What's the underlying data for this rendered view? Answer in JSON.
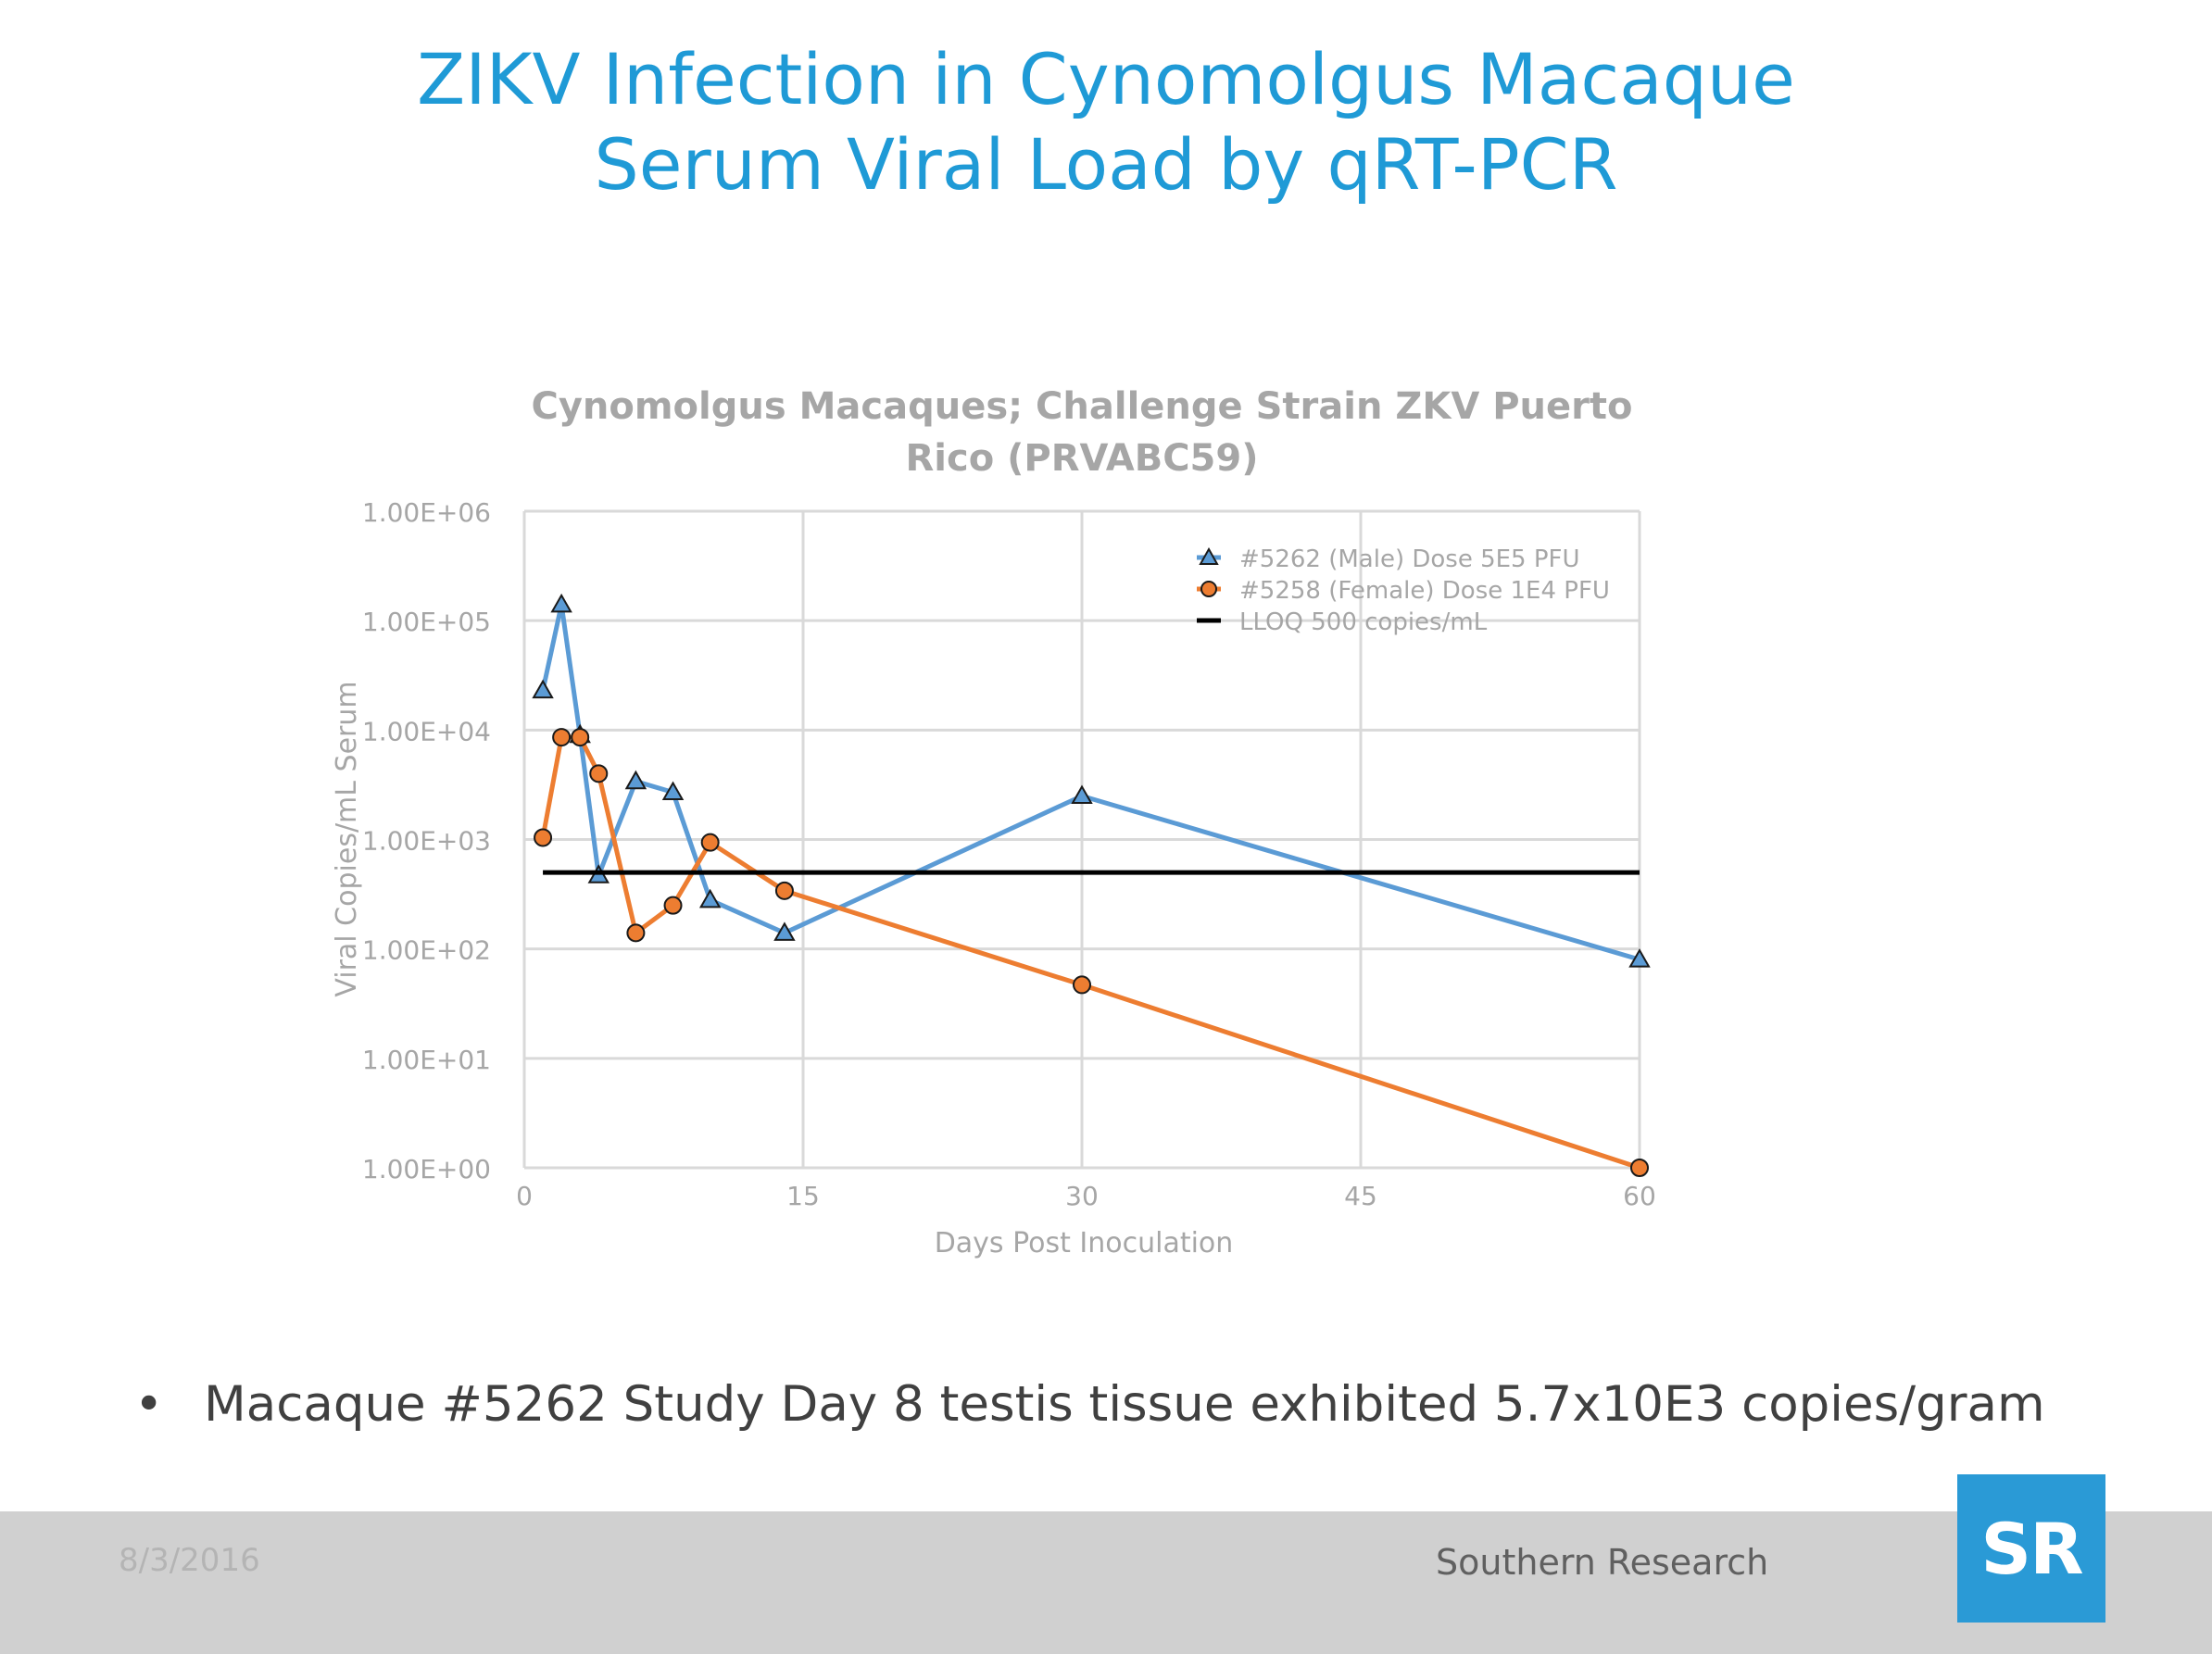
{
  "slide": {
    "title_line1": "ZIKV Infection in Cynomolgus Macaque",
    "title_line2": "Serum Viral Load by qRT-PCR",
    "bullet_symbol": "•",
    "bullet_text": "Macaque #5262 Study Day 8 testis tissue exhibited 5.7x10E3 copies/gram"
  },
  "footer": {
    "date": "8/3/2016",
    "company": "Southern Research",
    "logo_text": "SR"
  },
  "colors": {
    "title": "#1f9ad6",
    "male_series": "#5b9bd5",
    "female_series": "#ed7d31",
    "lloq": "#000000",
    "logo_bg": "#2a9ad6"
  },
  "chart_data": {
    "type": "line",
    "title_line1": "Cynomolgus Macaques; Challenge Strain ZKV Puerto",
    "title_line2": "Rico (PRVABC59)",
    "xlabel": "Days Post Inoculation",
    "ylabel": "Viral Copies/mL Serum",
    "xlim": [
      0,
      60
    ],
    "x_ticks": [
      0,
      15,
      30,
      45,
      60
    ],
    "y_scale": "log",
    "ylim": [
      1,
      1000000
    ],
    "y_ticks": [
      1,
      10,
      100,
      1000,
      10000,
      100000,
      1000000
    ],
    "y_tick_labels": [
      "1.00E+00",
      "1.00E+01",
      "1.00E+02",
      "1.00E+03",
      "1.00E+04",
      "1.00E+05",
      "1.00E+06"
    ],
    "grid": true,
    "legend_position": "top-right",
    "series": [
      {
        "name": "#5262 (Male) Dose 5E5 PFU",
        "marker": "triangle",
        "color": "#5b9bd5",
        "x": [
          1,
          2,
          3,
          4,
          6,
          8,
          10,
          14,
          30,
          60
        ],
        "y": [
          23000,
          140000,
          9000,
          470,
          3400,
          2700,
          280,
          140,
          2500,
          80
        ]
      },
      {
        "name": "#5258 (Female) Dose 1E4 PFU",
        "marker": "circle",
        "color": "#ed7d31",
        "x": [
          1,
          2,
          3,
          4,
          6,
          8,
          10,
          14,
          30,
          60
        ],
        "y": [
          1040,
          8600,
          8600,
          4000,
          140,
          250,
          940,
          340,
          47,
          1
        ]
      },
      {
        "name": "LLOQ 500 copies/mL",
        "marker": "none",
        "color": "#000000",
        "x": [
          1,
          60
        ],
        "y": [
          500,
          500
        ]
      }
    ]
  }
}
